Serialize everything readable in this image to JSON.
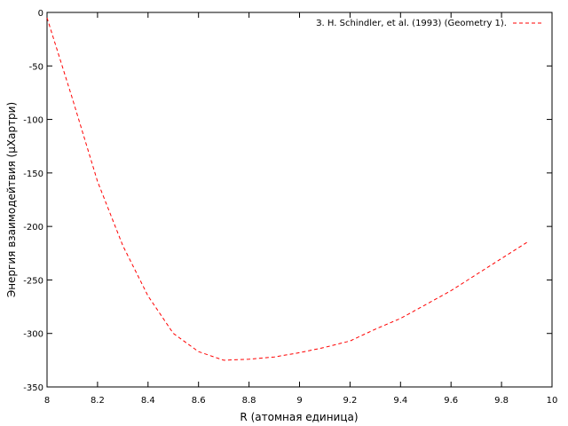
{
  "chart_data": {
    "type": "line",
    "xlabel": "R (атомная единица)",
    "ylabel": "Энергия взаимодейтвия (μХартри)",
    "xlim": [
      8,
      10
    ],
    "ylim": [
      -350,
      0
    ],
    "x_ticks": [
      8,
      8.2,
      8.4,
      8.6,
      8.8,
      9,
      9.2,
      9.4,
      9.6,
      9.8,
      10
    ],
    "x_tick_labels": [
      "8",
      "8.2",
      "8.4",
      "8.6",
      "8.8",
      "9",
      "9.2",
      "9.4",
      "9.6",
      "9.8",
      "10"
    ],
    "y_ticks": [
      0,
      -50,
      -100,
      -150,
      -200,
      -250,
      -300,
      -350
    ],
    "y_tick_labels": [
      "0",
      "-50",
      "-100",
      "-150",
      "-200",
      "-250",
      "-300",
      "-350"
    ],
    "grid": false,
    "legend_position": "top-right",
    "series": [
      {
        "name": "З. H. Schindler, et al. (1993) (Geometry 1).",
        "color": "#ff0000",
        "dash": "dashed",
        "x": [
          8.0,
          8.1,
          8.2,
          8.3,
          8.4,
          8.5,
          8.6,
          8.7,
          8.8,
          8.9,
          9.0,
          9.1,
          9.2,
          9.3,
          9.4,
          9.5,
          9.6,
          9.7,
          9.8,
          9.9
        ],
        "y": [
          -5,
          -80,
          -158,
          -218,
          -265,
          -300,
          -317,
          -325,
          -324,
          -322,
          -318,
          -313,
          -307,
          -296,
          -286,
          -273,
          -260,
          -245,
          -230,
          -215
        ]
      }
    ]
  }
}
